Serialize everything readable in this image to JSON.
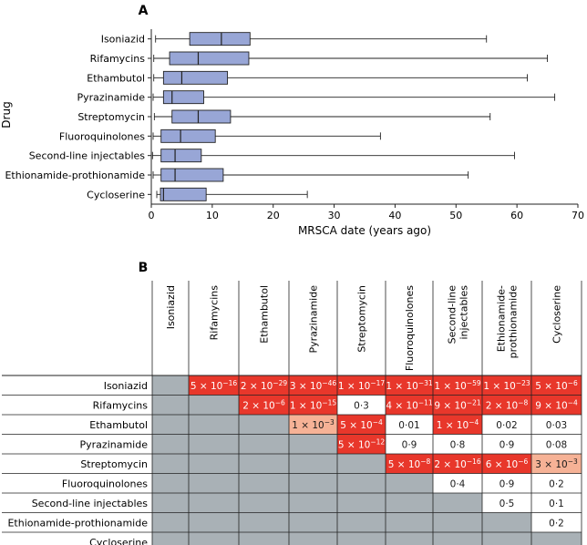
{
  "chart_data": [
    {
      "type": "boxplot",
      "panel_label": "A",
      "xlabel": "MRSCA date (years ago)",
      "ylabel": "Drug",
      "xlim": [
        0,
        70
      ],
      "xticks": [
        0,
        10,
        20,
        30,
        40,
        50,
        60,
        70
      ],
      "box_color": "#98a6d6",
      "grid": false,
      "categories": [
        "Isoniazid",
        "Rifamycins",
        "Ethambutol",
        "Pyrazinamide",
        "Streptomycin",
        "Fluoroquinolones",
        "Second-line injectables",
        "Ethionamide-prothionamide",
        "Cycloserine"
      ],
      "boxes": [
        {
          "min": 0.7,
          "q1": 6.3,
          "median": 11.5,
          "q3": 16.2,
          "max": 55.0
        },
        {
          "min": 0.4,
          "q1": 3.0,
          "median": 7.7,
          "q3": 16.0,
          "max": 65.0
        },
        {
          "min": 0.4,
          "q1": 2.0,
          "median": 5.0,
          "q3": 12.5,
          "max": 61.7
        },
        {
          "min": 0.3,
          "q1": 2.0,
          "median": 3.4,
          "q3": 8.6,
          "max": 66.2
        },
        {
          "min": 0.5,
          "q1": 3.4,
          "median": 7.7,
          "q3": 13.0,
          "max": 55.6
        },
        {
          "min": 0.3,
          "q1": 1.6,
          "median": 4.8,
          "q3": 10.5,
          "max": 37.6
        },
        {
          "min": 0.2,
          "q1": 1.6,
          "median": 3.9,
          "q3": 8.2,
          "max": 59.6
        },
        {
          "min": 0.3,
          "q1": 1.6,
          "median": 3.9,
          "q3": 11.8,
          "max": 52.0
        },
        {
          "min": 0.9,
          "q1": 1.5,
          "median": 2.0,
          "q3": 9.0,
          "max": 25.6
        }
      ]
    },
    {
      "type": "table",
      "panel_label": "B",
      "row_labels": [
        "Isoniazid",
        "Rifamycins",
        "Ethambutol",
        "Pyrazinamide",
        "Streptomycin",
        "Fluoroquinolones",
        "Second-line injectables",
        "Ethionamide-prothionamide",
        "Cycloserine"
      ],
      "col_labels": [
        [
          "Isoniazid"
        ],
        [
          "Rifamycins"
        ],
        [
          "Ethambutol"
        ],
        [
          "Pyrazinamide"
        ],
        [
          "Streptomycin"
        ],
        [
          "Fluoroquinolones"
        ],
        [
          "Second-line",
          "injectables"
        ],
        [
          "Ethionamide-",
          "prothionamide"
        ],
        [
          "Cycloserine"
        ]
      ],
      "colors": {
        "strong": "#e8372b",
        "weak": "#f6b296",
        "none": "#ffffff",
        "blank": "#a9b1b6"
      },
      "cells": [
        [
          null,
          {
            "m": "5",
            "e": "−16",
            "s": "strong"
          },
          {
            "m": "2",
            "e": "−29",
            "s": "strong"
          },
          {
            "m": "3",
            "e": "−46",
            "s": "strong"
          },
          {
            "m": "1",
            "e": "−17",
            "s": "strong"
          },
          {
            "m": "1",
            "e": "−31",
            "s": "strong"
          },
          {
            "m": "1",
            "e": "−59",
            "s": "strong"
          },
          {
            "m": "1",
            "e": "−23",
            "s": "strong"
          },
          {
            "m": "5",
            "e": "−6",
            "s": "strong"
          }
        ],
        [
          null,
          null,
          {
            "m": "2",
            "e": "−6",
            "s": "strong"
          },
          {
            "m": "1",
            "e": "−15",
            "s": "strong"
          },
          {
            "t": "0·3",
            "s": "none"
          },
          {
            "m": "4",
            "e": "−11",
            "s": "strong"
          },
          {
            "m": "9",
            "e": "−21",
            "s": "strong"
          },
          {
            "m": "2",
            "e": "−8",
            "s": "strong"
          },
          {
            "m": "9",
            "e": "−4",
            "s": "strong"
          }
        ],
        [
          null,
          null,
          null,
          {
            "m": "1",
            "e": "−3",
            "s": "weak"
          },
          {
            "m": "5",
            "e": "−4",
            "s": "strong"
          },
          {
            "t": "0·01",
            "s": "none"
          },
          {
            "m": "1",
            "e": "−4",
            "s": "strong"
          },
          {
            "t": "0·02",
            "s": "none"
          },
          {
            "t": "0·03",
            "s": "none"
          }
        ],
        [
          null,
          null,
          null,
          null,
          {
            "m": "5",
            "e": "−12",
            "s": "strong"
          },
          {
            "t": "0·9",
            "s": "none"
          },
          {
            "t": "0·8",
            "s": "none"
          },
          {
            "t": "0·9",
            "s": "none"
          },
          {
            "t": "0·08",
            "s": "none"
          }
        ],
        [
          null,
          null,
          null,
          null,
          null,
          {
            "m": "5",
            "e": "−8",
            "s": "strong"
          },
          {
            "m": "2",
            "e": "−16",
            "s": "strong"
          },
          {
            "m": "6",
            "e": "−6",
            "s": "strong"
          },
          {
            "m": "3",
            "e": "−3",
            "s": "weak"
          }
        ],
        [
          null,
          null,
          null,
          null,
          null,
          null,
          {
            "t": "0·4",
            "s": "none"
          },
          {
            "t": "0·9",
            "s": "none"
          },
          {
            "t": "0·2",
            "s": "none"
          }
        ],
        [
          null,
          null,
          null,
          null,
          null,
          null,
          null,
          {
            "t": "0·5",
            "s": "none"
          },
          {
            "t": "0·1",
            "s": "none"
          }
        ],
        [
          null,
          null,
          null,
          null,
          null,
          null,
          null,
          null,
          {
            "t": "0·2",
            "s": "none"
          }
        ],
        [
          null,
          null,
          null,
          null,
          null,
          null,
          null,
          null,
          null
        ]
      ]
    }
  ]
}
